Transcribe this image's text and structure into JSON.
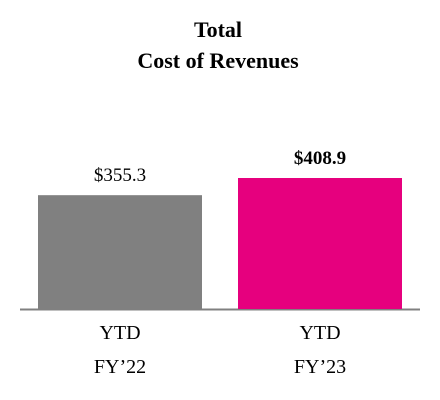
{
  "chart_data": {
    "type": "bar",
    "title": "Total\nCost of Revenues",
    "categories": [
      "YTD\nFY’22",
      "YTD\nFY’23"
    ],
    "values": [
      355.3,
      408.9
    ],
    "value_labels": [
      "$355.3",
      "$408.9"
    ],
    "colors": [
      "#808080",
      "#e6007e"
    ]
  }
}
